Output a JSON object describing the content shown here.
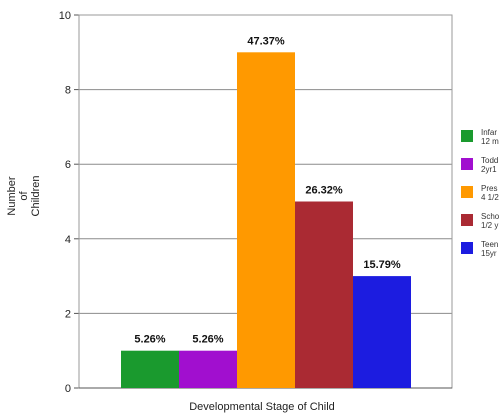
{
  "chart_data": {
    "type": "bar",
    "title": "",
    "xlabel": "Developmental Stage of Child",
    "ylabel": [
      "Number",
      "of",
      "Children"
    ],
    "ylim": [
      0,
      10
    ],
    "yticks": [
      0,
      2,
      4,
      6,
      8,
      10
    ],
    "grid": true,
    "legend_position": "right",
    "categories": [
      "Infants",
      "Toddlers",
      "Preschoolers",
      "School-age",
      "Teens"
    ],
    "values": [
      1,
      1,
      9,
      5,
      3
    ],
    "data_labels": [
      "5.26%",
      "5.26%",
      "47.37%",
      "26.32%",
      "15.79%"
    ],
    "colors": [
      "#1a9a2e",
      "#a10fcf",
      "#ff9900",
      "#aa2a33",
      "#1c1ce0"
    ],
    "legend": [
      {
        "text": "Infar\n12 m"
      },
      {
        "text": "Todd\n2yr1"
      },
      {
        "text": "Pres\n4 1/2"
      },
      {
        "text": "Scho\n1/2 y"
      },
      {
        "text": "Teen\n15yr"
      }
    ]
  }
}
